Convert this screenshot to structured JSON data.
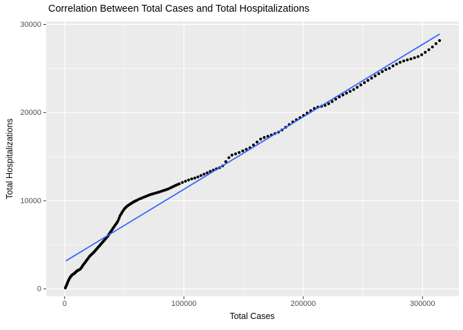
{
  "chart_data": {
    "type": "scatter",
    "title": "Correlation Between Total Cases and Total Hospitalizations",
    "xlabel": "Total Cases",
    "ylabel": "Total Hospitalizations",
    "x_tick_values": [
      0,
      100000,
      200000,
      300000
    ],
    "x_tick_labels": [
      "0",
      "100000",
      "200000",
      "300000"
    ],
    "y_tick_values": [
      0,
      10000,
      20000,
      30000
    ],
    "y_tick_labels": [
      "0",
      "10000",
      "20000",
      "30000"
    ],
    "x_minor_values": [
      50000,
      150000,
      250000
    ],
    "y_minor_values": [
      5000,
      15000,
      25000
    ],
    "xlim": [
      -15500,
      330500
    ],
    "ylim": [
      -850,
      30350
    ],
    "grid": true,
    "legend": false,
    "panel_bg": "#EBEBEB",
    "grid_color": "#FFFFFF",
    "tick_color": "#333333",
    "point_color": "#000000",
    "trend_color": "#3366FF",
    "trend_line": {
      "x1": 1400,
      "y1": 3200,
      "x2": 314100,
      "y2": 28880
    },
    "points": [
      [
        600,
        100
      ],
      [
        2000,
        550
      ],
      [
        3200,
        950
      ],
      [
        4600,
        1300
      ],
      [
        6000,
        1550
      ],
      [
        8200,
        1750
      ],
      [
        10000,
        2000
      ],
      [
        13300,
        2250
      ],
      [
        15500,
        2700
      ],
      [
        18000,
        3150
      ],
      [
        21000,
        3700
      ],
      [
        24800,
        4200
      ],
      [
        28000,
        4700
      ],
      [
        30600,
        5100
      ],
      [
        33500,
        5550
      ],
      [
        36300,
        6000
      ],
      [
        38000,
        6350
      ],
      [
        40200,
        6800
      ],
      [
        42500,
        7250
      ],
      [
        44500,
        7650
      ],
      [
        46500,
        8300
      ],
      [
        48700,
        8800
      ],
      [
        50500,
        9150
      ],
      [
        53000,
        9450
      ],
      [
        57000,
        9800
      ],
      [
        62000,
        10150
      ],
      [
        67000,
        10430
      ],
      [
        72000,
        10700
      ],
      [
        78500,
        10950
      ],
      [
        83000,
        11150
      ],
      [
        87000,
        11340
      ],
      [
        93000,
        11730
      ],
      [
        99600,
        12120
      ],
      [
        105400,
        12430
      ],
      [
        110000,
        12600
      ],
      [
        115000,
        12900
      ],
      [
        121000,
        13250
      ],
      [
        127000,
        13600
      ],
      [
        132000,
        13850
      ],
      [
        136200,
        14640
      ],
      [
        139100,
        15110
      ],
      [
        143000,
        15300
      ],
      [
        147000,
        15500
      ],
      [
        151000,
        15750
      ],
      [
        155400,
        16020
      ],
      [
        160000,
        16500
      ],
      [
        165000,
        17060
      ],
      [
        169000,
        17250
      ],
      [
        172500,
        17400
      ],
      [
        176000,
        17600
      ],
      [
        180500,
        17840
      ],
      [
        186000,
        18400
      ],
      [
        192000,
        19010
      ],
      [
        196000,
        19300
      ],
      [
        200200,
        19665
      ],
      [
        205000,
        20100
      ],
      [
        209000,
        20450
      ],
      [
        212000,
        20600
      ],
      [
        215000,
        20700
      ],
      [
        219000,
        20835
      ],
      [
        222000,
        21050
      ],
      [
        226000,
        21400
      ],
      [
        231400,
        21870
      ],
      [
        237000,
        22250
      ],
      [
        243000,
        22650
      ],
      [
        249000,
        23200
      ],
      [
        256400,
        23820
      ],
      [
        262000,
        24300
      ],
      [
        268900,
        24855
      ],
      [
        272000,
        25000
      ],
      [
        276000,
        25350
      ],
      [
        282400,
        25770
      ],
      [
        288000,
        26000
      ],
      [
        293000,
        26200
      ],
      [
        297800,
        26420
      ],
      [
        303000,
        26900
      ],
      [
        308000,
        27400
      ],
      [
        312000,
        27900
      ],
      [
        315500,
        28300
      ]
    ],
    "point_density_steps": [
      {
        "to": 12000,
        "step": 500
      },
      {
        "to": 60000,
        "step": 800
      },
      {
        "to": 95000,
        "step": 1500
      },
      {
        "to": 140000,
        "step": 2600
      },
      {
        "to": 315500,
        "step": 3000
      }
    ]
  }
}
